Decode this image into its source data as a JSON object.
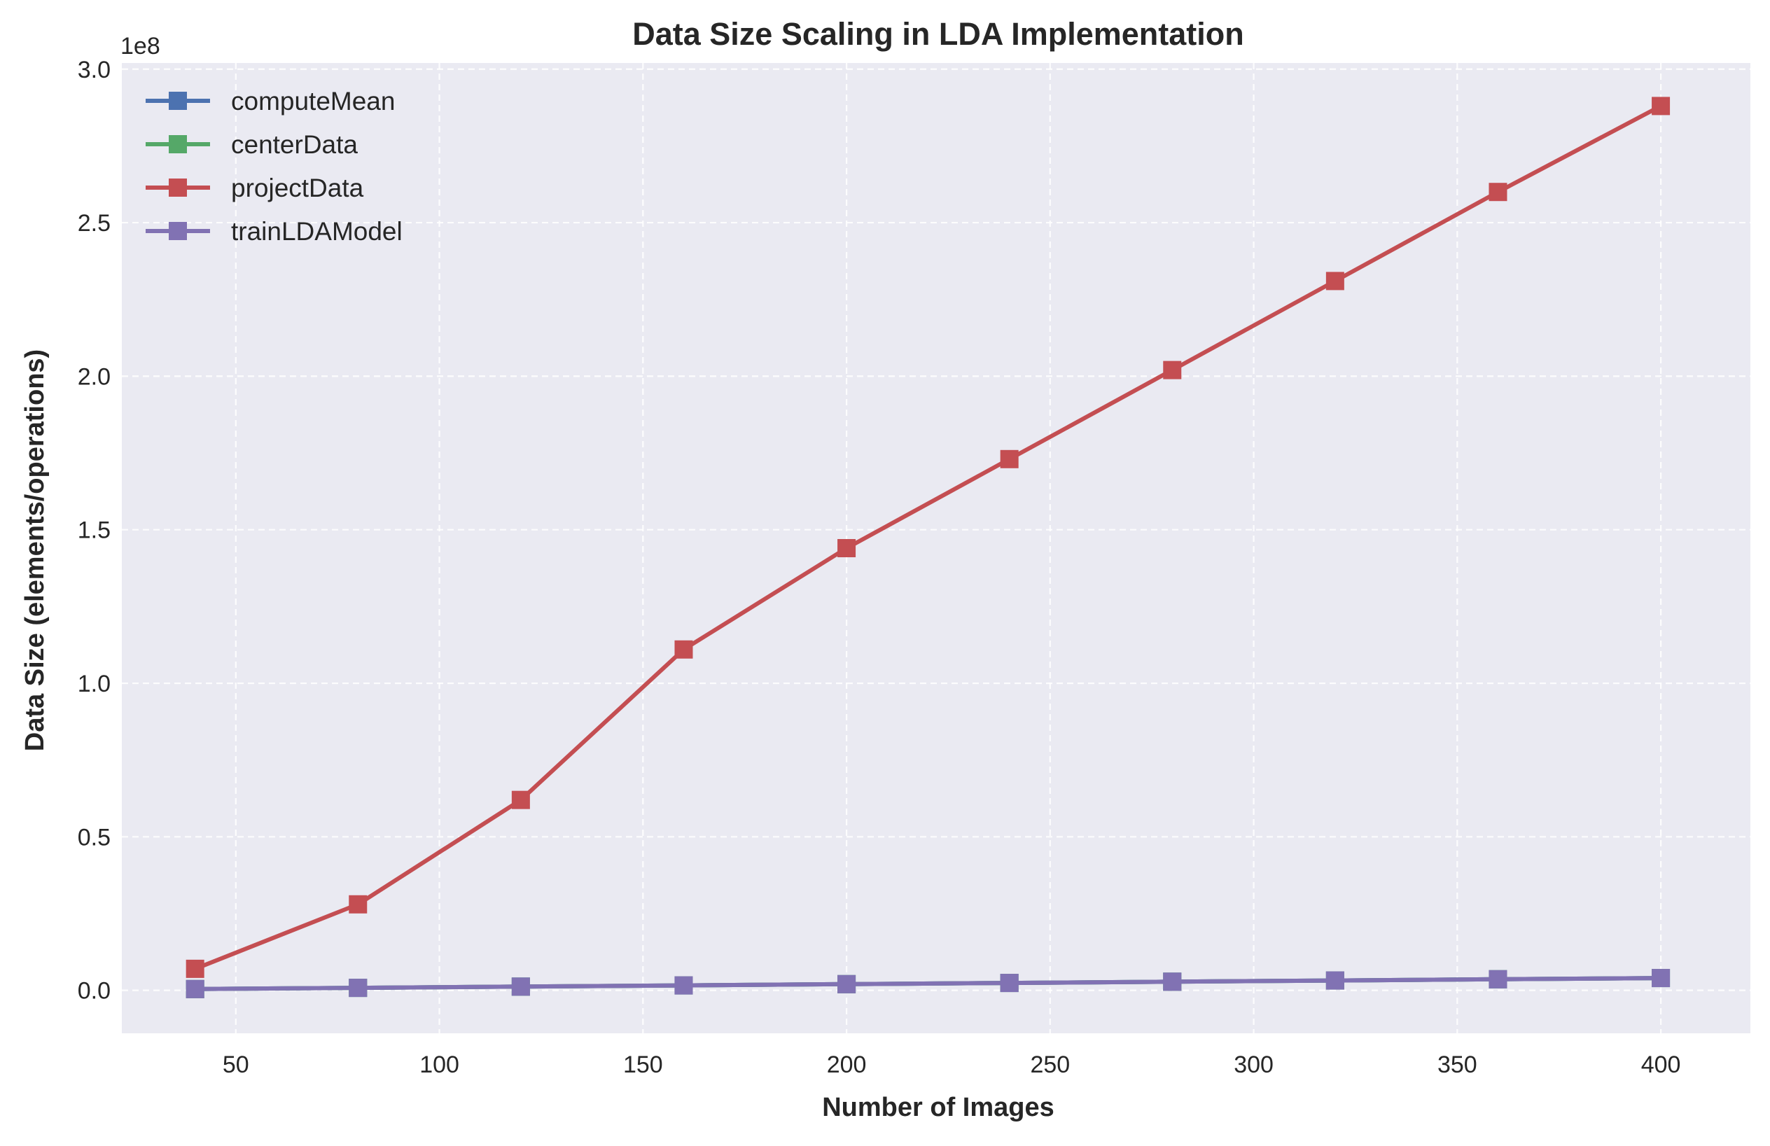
{
  "chart_data": {
    "type": "line",
    "title": "Data Size Scaling in LDA Implementation",
    "xlabel": "Number of Images",
    "ylabel": "Data Size (elements/operations)",
    "y_offset_label": "1e8",
    "y_scale_factor": 100000000,
    "xlim": [
      22,
      422
    ],
    "ylim": [
      -0.14,
      3.02
    ],
    "xticks": [
      50,
      100,
      150,
      200,
      250,
      300,
      350,
      400
    ],
    "xtick_labels": [
      "50",
      "100",
      "150",
      "200",
      "250",
      "300",
      "350",
      "400"
    ],
    "yticks": [
      0.0,
      0.5,
      1.0,
      1.5,
      2.0,
      2.5,
      3.0
    ],
    "ytick_labels": [
      "0.0",
      "0.5",
      "1.0",
      "1.5",
      "2.0",
      "2.5",
      "3.0"
    ],
    "grid": true,
    "legend_position": "top-left",
    "x": [
      40,
      80,
      120,
      160,
      200,
      240,
      280,
      320,
      360,
      400
    ],
    "series": [
      {
        "name": "computeMean",
        "color": "#4c72b0",
        "marker": "square",
        "values": [
          0.004,
          0.008,
          0.012,
          0.016,
          0.02,
          0.024,
          0.028,
          0.032,
          0.036,
          0.04
        ]
      },
      {
        "name": "centerData",
        "color": "#55a868",
        "marker": "square",
        "values": [
          0.004,
          0.008,
          0.012,
          0.016,
          0.02,
          0.024,
          0.028,
          0.032,
          0.036,
          0.04
        ]
      },
      {
        "name": "projectData",
        "color": "#c44e52",
        "marker": "square",
        "values": [
          0.07,
          0.28,
          0.62,
          1.11,
          1.44,
          1.73,
          2.02,
          2.31,
          2.6,
          2.88
        ]
      },
      {
        "name": "trainLDAModel",
        "color": "#8172b3",
        "marker": "square",
        "values": [
          0.004,
          0.008,
          0.012,
          0.016,
          0.02,
          0.024,
          0.028,
          0.032,
          0.036,
          0.04
        ]
      }
    ]
  },
  "colors": {
    "plot_background": "#eaeaf2",
    "page_background": "#ffffff",
    "grid": "#ffffff",
    "text": "#262626"
  }
}
